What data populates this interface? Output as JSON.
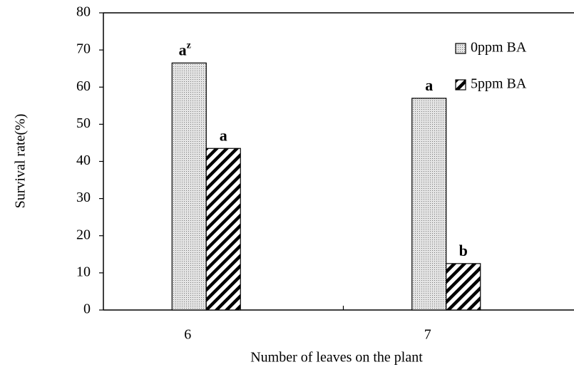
{
  "chart_data": {
    "type": "bar",
    "xlabel": "Number of leaves on the plant",
    "ylabel": "Survival rate(%)",
    "categories": [
      "6",
      "7"
    ],
    "series": [
      {
        "name": "0ppm BA",
        "color": "#c8c8c8",
        "pattern": "dots",
        "values": [
          66.5,
          57
        ],
        "letters": [
          "a",
          "a"
        ],
        "letter_sup": [
          "z",
          null
        ]
      },
      {
        "name": "5ppm BA",
        "color": "#000000",
        "pattern": "hatch",
        "values": [
          43.5,
          12.5
        ],
        "letters": [
          "a",
          "b"
        ],
        "letter_sup": [
          null,
          null
        ]
      }
    ],
    "ylim": [
      0,
      80
    ],
    "yticks": [
      0,
      10,
      20,
      30,
      40,
      50,
      60,
      70,
      80
    ],
    "grid": false,
    "legend": "upper right"
  }
}
